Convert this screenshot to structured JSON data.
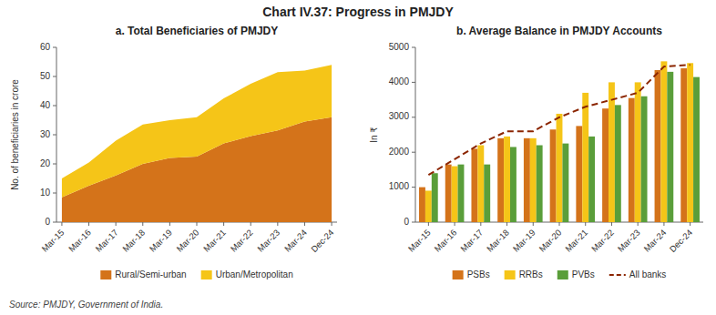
{
  "title": "Chart IV.37: Progress in PMJDY",
  "source": "Source: PMJDY, Government of India.",
  "chart_data": [
    {
      "type": "area",
      "stacked": true,
      "grid": false,
      "legend": "bottom",
      "title": "a. Total Beneficiaries of PMJDY",
      "ylabel": "No. of beneficiaries in crore",
      "categories": [
        "Mar-15",
        "Mar-16",
        "Mar-17",
        "Mar-18",
        "Mar-19",
        "Mar-20",
        "Mar-21",
        "Mar-22",
        "Mar-23",
        "Mar-24",
        "Dec-24"
      ],
      "series": [
        {
          "name": "Rural/Semi-urban",
          "color": "#D4731A",
          "values": [
            8.5,
            12.5,
            16.0,
            20.0,
            22.0,
            22.5,
            27.0,
            29.5,
            31.5,
            34.5,
            36.0
          ]
        },
        {
          "name": "Urban/Metropolitan",
          "color": "#F5C518",
          "values": [
            6.5,
            8.0,
            12.0,
            13.5,
            13.0,
            13.5,
            15.5,
            18.0,
            20.0,
            17.5,
            18.0
          ]
        }
      ],
      "ylim": [
        0,
        60
      ],
      "yticks": [
        0,
        10,
        20,
        30,
        40,
        50,
        60
      ]
    },
    {
      "type": "bar",
      "grid": false,
      "legend": "bottom",
      "title": "b. Average Balance in PMJDY Accounts",
      "ylabel": "In ₹",
      "categories": [
        "Mar-15",
        "Mar-16",
        "Mar-17",
        "Mar-18",
        "Mar-19",
        "Mar-20",
        "Mar-21",
        "Mar-22",
        "Mar-23",
        "Mar-24",
        "Dec-24"
      ],
      "series": [
        {
          "name": "PSBs",
          "type": "bar",
          "color": "#D4731A",
          "values": [
            1000,
            1650,
            2100,
            2400,
            2400,
            2650,
            2750,
            3250,
            3550,
            4350,
            4400
          ]
        },
        {
          "name": "RRBs",
          "type": "bar",
          "color": "#F5C518",
          "values": [
            900,
            1600,
            2200,
            2450,
            2400,
            3100,
            3700,
            4000,
            4000,
            4600,
            4550
          ]
        },
        {
          "name": "PVBs",
          "type": "bar",
          "color": "#5A9E3A",
          "values": [
            1400,
            1650,
            1650,
            2150,
            2200,
            2250,
            2450,
            3350,
            3600,
            4300,
            4150
          ]
        },
        {
          "name": "All banks",
          "type": "line",
          "line_style": "dashed",
          "color": "#8B2500",
          "values": [
            1350,
            1800,
            2250,
            2600,
            2600,
            3000,
            3300,
            3500,
            3700,
            4450,
            4500
          ]
        }
      ],
      "ylim": [
        0,
        5000
      ],
      "yticks": [
        0,
        1000,
        2000,
        3000,
        4000,
        5000
      ]
    }
  ]
}
